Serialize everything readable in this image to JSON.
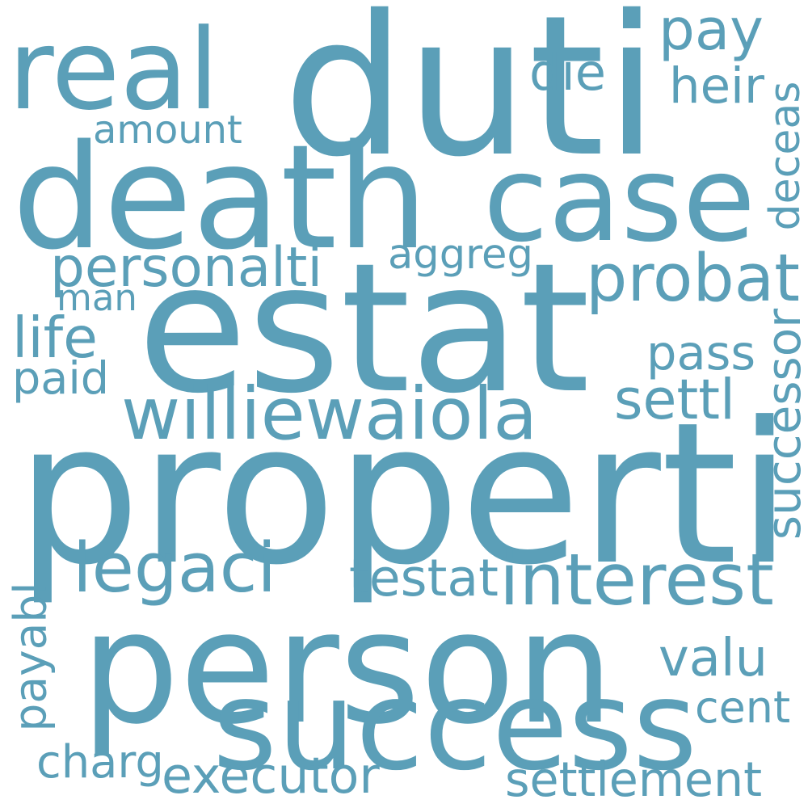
{
  "word_color": "#5b9fb8",
  "background_color": "#ffffff",
  "words": [
    {
      "key": "properti",
      "text": "properti",
      "weight": 1.0
    },
    {
      "key": "person",
      "text": "person",
      "weight": 0.93
    },
    {
      "key": "duti",
      "text": "duti",
      "weight": 0.9
    },
    {
      "key": "estat",
      "text": "estat",
      "weight": 0.86
    },
    {
      "key": "death",
      "text": "death",
      "weight": 0.82
    },
    {
      "key": "success",
      "text": "success",
      "weight": 0.72
    },
    {
      "key": "case",
      "text": "case",
      "weight": 0.6
    },
    {
      "key": "real",
      "text": "real",
      "weight": 0.6
    },
    {
      "key": "williewaiola",
      "text": "williewaiola",
      "weight": 0.38
    },
    {
      "key": "probat",
      "text": "probat",
      "weight": 0.36
    },
    {
      "key": "interest",
      "text": "interest",
      "weight": 0.36
    },
    {
      "key": "legaci",
      "text": "legaci",
      "weight": 0.34
    },
    {
      "key": "executor",
      "text": "executor",
      "weight": 0.3
    },
    {
      "key": "settlement",
      "text": "settlement",
      "weight": 0.28
    },
    {
      "key": "personalti",
      "text": "personalti",
      "weight": 0.27
    },
    {
      "key": "pay",
      "text": "pay",
      "weight": 0.27
    },
    {
      "key": "successor",
      "text": "successor",
      "weight": 0.26
    },
    {
      "key": "aggreg",
      "text": "aggreg",
      "weight": 0.25
    },
    {
      "key": "charg",
      "text": "charg",
      "weight": 0.25
    },
    {
      "key": "testat",
      "text": "testat",
      "weight": 0.24
    },
    {
      "key": "valu",
      "text": "valu",
      "weight": 0.24
    },
    {
      "key": "man",
      "text": "man",
      "weight": 0.24
    },
    {
      "key": "pass",
      "text": "pass",
      "weight": 0.24
    },
    {
      "key": "deceas",
      "text": "deceas",
      "weight": 0.23
    },
    {
      "key": "settl",
      "text": "settl",
      "weight": 0.23
    },
    {
      "key": "life",
      "text": "life",
      "weight": 0.23
    },
    {
      "key": "paid",
      "text": "paid",
      "weight": 0.23
    },
    {
      "key": "cent",
      "text": "cent",
      "weight": 0.23
    },
    {
      "key": "payabl",
      "text": "payabl",
      "weight": 0.22
    },
    {
      "key": "amount",
      "text": "amount",
      "weight": 0.22
    },
    {
      "key": "die",
      "text": "die",
      "weight": 0.22
    },
    {
      "key": "heir",
      "text": "heir",
      "weight": 0.21
    }
  ]
}
